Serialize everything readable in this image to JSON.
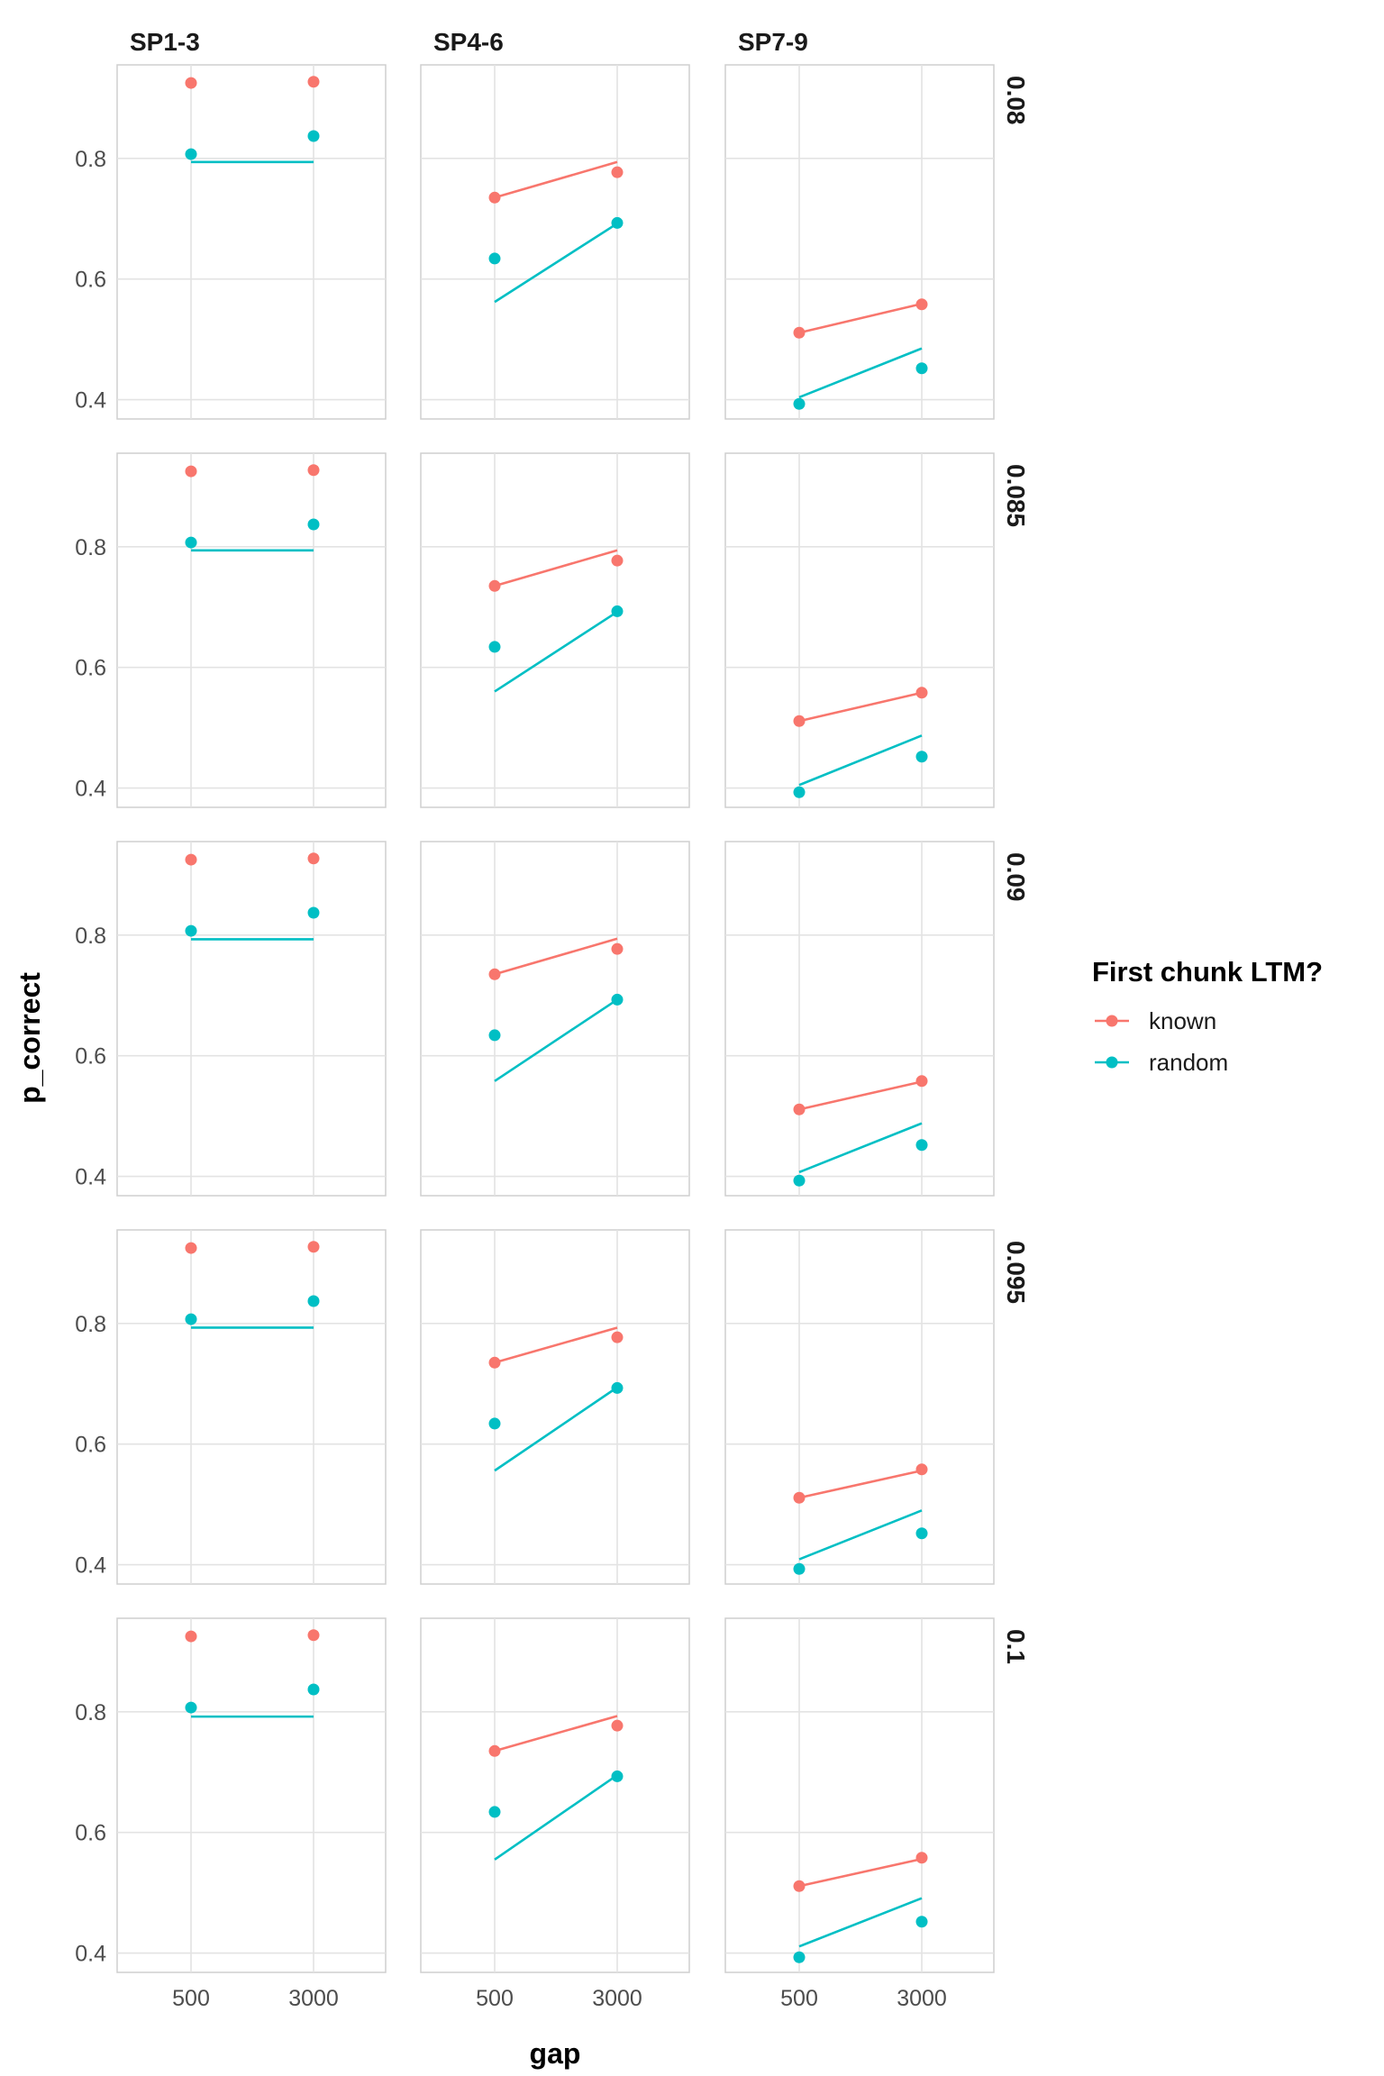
{
  "chart_data": {
    "type": "line",
    "facet_columns": [
      "SP1-3",
      "SP4-6",
      "SP7-9"
    ],
    "facet_rows": [
      "0.08",
      "0.085",
      "0.09",
      "0.095",
      "0.1"
    ],
    "xlabel": "gap",
    "ylabel": "p_correct",
    "x_ticks": [
      500,
      3000
    ],
    "y_ticks": [
      0.4,
      0.6,
      0.8
    ],
    "ylim": [
      0.368,
      0.955
    ],
    "grid": true,
    "legend": {
      "title": "First chunk LTM?",
      "position": "right",
      "entries": [
        {
          "name": "known",
          "color": "#F8766D"
        },
        {
          "name": "random",
          "color": "#00BFC4"
        }
      ]
    },
    "colors": {
      "known": "#F8766D",
      "random": "#00BFC4"
    },
    "observed": {
      "SP1-3": {
        "known": [
          0.925,
          0.927
        ],
        "random": [
          0.807,
          0.837
        ]
      },
      "SP4-6": {
        "known": [
          0.735,
          0.777
        ],
        "random": [
          0.634,
          0.693
        ]
      },
      "SP7-9": {
        "known": [
          0.511,
          0.558
        ],
        "random": [
          0.393,
          0.452
        ]
      }
    },
    "panels": [
      {
        "row": "0.08",
        "col": "SP1-3",
        "known_line": null,
        "random_line": [
          0.794,
          0.794
        ]
      },
      {
        "row": "0.08",
        "col": "SP4-6",
        "known_line": [
          0.735,
          0.794
        ],
        "random_line": [
          0.562,
          0.692
        ]
      },
      {
        "row": "0.08",
        "col": "SP7-9",
        "known_line": [
          0.511,
          0.559
        ],
        "random_line": [
          0.404,
          0.485
        ]
      },
      {
        "row": "0.085",
        "col": "SP1-3",
        "known_line": null,
        "random_line": [
          0.794,
          0.794
        ]
      },
      {
        "row": "0.085",
        "col": "SP4-6",
        "known_line": [
          0.735,
          0.794
        ],
        "random_line": [
          0.56,
          0.692
        ]
      },
      {
        "row": "0.085",
        "col": "SP7-9",
        "known_line": [
          0.511,
          0.558
        ],
        "random_line": [
          0.405,
          0.487
        ]
      },
      {
        "row": "0.09",
        "col": "SP1-3",
        "known_line": null,
        "random_line": [
          0.793,
          0.793
        ]
      },
      {
        "row": "0.09",
        "col": "SP4-6",
        "known_line": [
          0.735,
          0.794
        ],
        "random_line": [
          0.558,
          0.693
        ]
      },
      {
        "row": "0.09",
        "col": "SP7-9",
        "known_line": [
          0.511,
          0.557
        ],
        "random_line": [
          0.407,
          0.488
        ]
      },
      {
        "row": "0.095",
        "col": "SP1-3",
        "known_line": null,
        "random_line": [
          0.793,
          0.793
        ]
      },
      {
        "row": "0.095",
        "col": "SP4-6",
        "known_line": [
          0.735,
          0.793
        ],
        "random_line": [
          0.556,
          0.694
        ]
      },
      {
        "row": "0.095",
        "col": "SP7-9",
        "known_line": [
          0.511,
          0.556
        ],
        "random_line": [
          0.409,
          0.49
        ]
      },
      {
        "row": "0.1",
        "col": "SP1-3",
        "known_line": null,
        "random_line": [
          0.792,
          0.792
        ]
      },
      {
        "row": "0.1",
        "col": "SP4-6",
        "known_line": [
          0.735,
          0.793
        ],
        "random_line": [
          0.555,
          0.695
        ]
      },
      {
        "row": "0.1",
        "col": "SP7-9",
        "known_line": [
          0.511,
          0.556
        ],
        "random_line": [
          0.411,
          0.491
        ]
      }
    ]
  }
}
